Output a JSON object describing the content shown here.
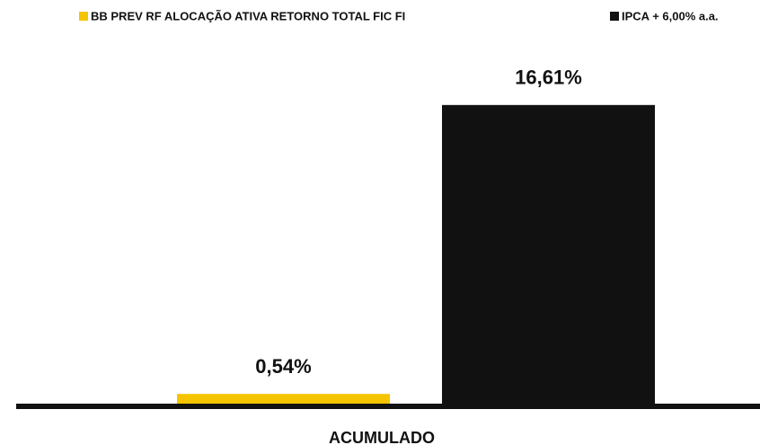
{
  "chart_data": {
    "type": "bar",
    "categories": [
      "ACUMULADO"
    ],
    "series": [
      {
        "name": "BB PREV RF ALOCAÇÃO ATIVA RETORNO TOTAL FIC FI",
        "color": "#f5c400",
        "values": [
          0.54
        ],
        "value_labels": [
          "0,54%"
        ]
      },
      {
        "name": "IPCA + 6,00% a.a.",
        "color": "#111111",
        "values": [
          16.61
        ],
        "value_labels": [
          "16,61%"
        ]
      }
    ],
    "ylim": [
      0,
      18
    ]
  }
}
